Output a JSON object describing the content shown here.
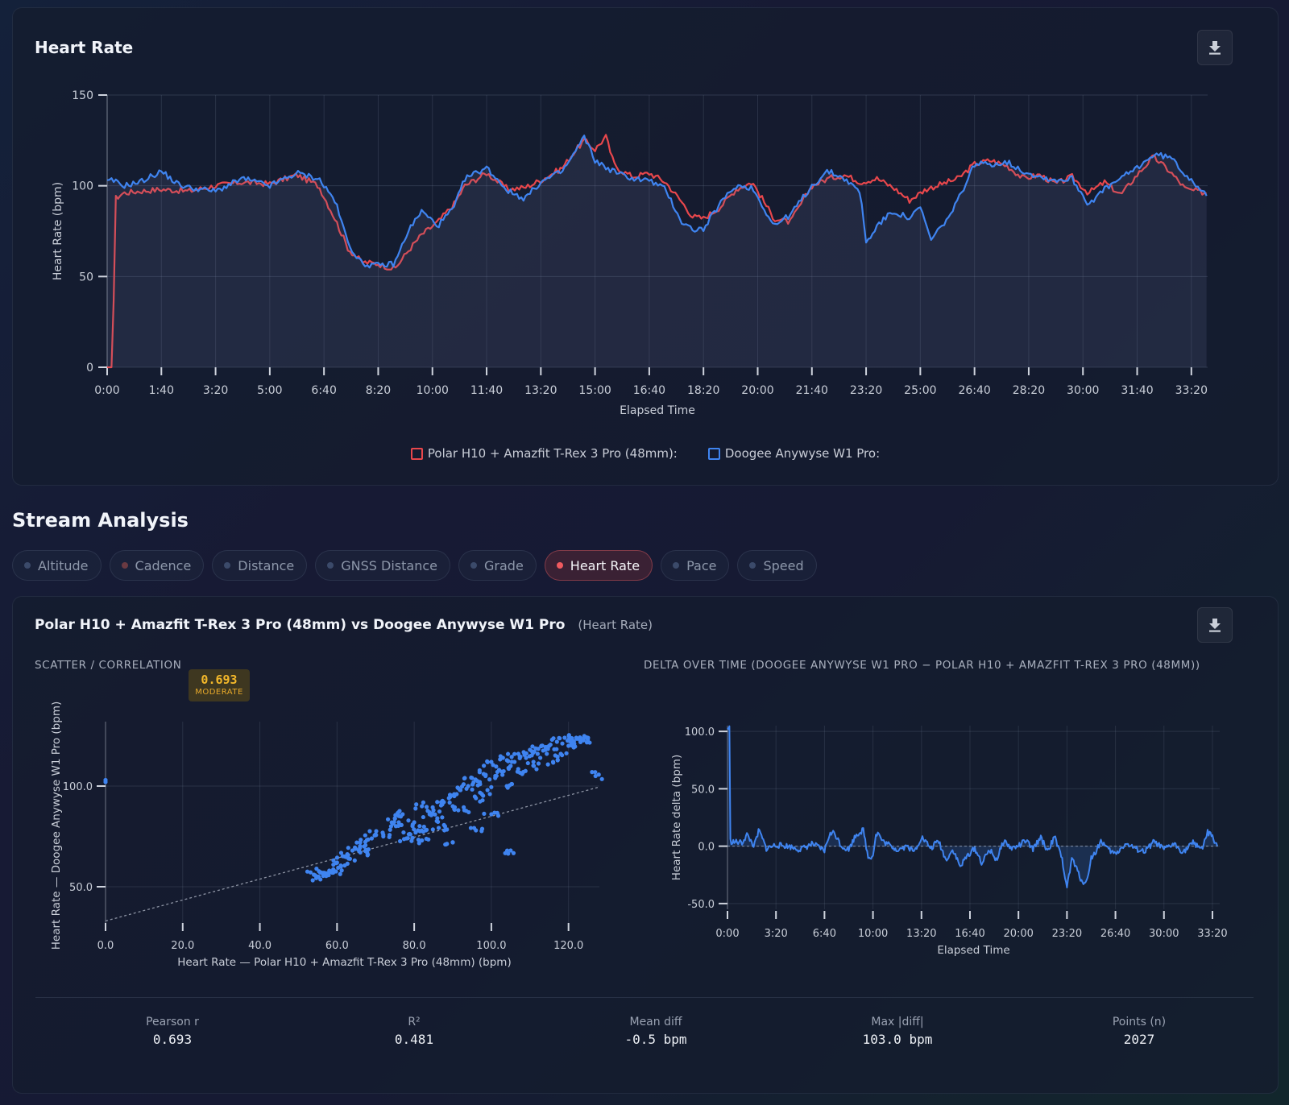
{
  "heart_rate_card": {
    "title": "Heart Rate",
    "download_icon": "download-icon",
    "legend": [
      {
        "label": "Polar H10 + Amazfit T-Rex 3 Pro (48mm):",
        "color": "#e8474c"
      },
      {
        "label": "Doogee Anywyse W1 Pro:",
        "color": "#3f84f0"
      }
    ]
  },
  "section": {
    "title": "Stream Analysis",
    "tabs": [
      {
        "label": "Altitude",
        "active": false
      },
      {
        "label": "Cadence",
        "active": false
      },
      {
        "label": "Distance",
        "active": false
      },
      {
        "label": "GNSS Distance",
        "active": false
      },
      {
        "label": "Grade",
        "active": false
      },
      {
        "label": "Heart Rate",
        "active": true
      },
      {
        "label": "Pace",
        "active": false
      },
      {
        "label": "Speed",
        "active": false
      }
    ]
  },
  "comparison": {
    "title": "Polar H10 + Amazfit T-Rex 3 Pro (48mm) vs Doogee Anywyse W1 Pro",
    "subtitle": "(Heart Rate)",
    "scatter_label": "SCATTER / CORRELATION",
    "badge_value": "0.693",
    "badge_label": "MODERATE",
    "delta_label": "DELTA OVER TIME (DOOGEE ANYWYSE W1 PRO − POLAR H10 + AMAZFIT T-REX 3 PRO (48MM))",
    "stats": [
      {
        "label": "Pearson r",
        "value": "0.693"
      },
      {
        "label": "R²",
        "value": "0.481"
      },
      {
        "label": "Mean diff",
        "value": "-0.5 bpm"
      },
      {
        "label": "Max |diff|",
        "value": "103.0 bpm"
      },
      {
        "label": "Points (n)",
        "value": "2027"
      }
    ]
  },
  "chart_data": [
    {
      "id": "hr-timeseries",
      "type": "line",
      "title": "Heart Rate",
      "xlabel": "Elapsed Time",
      "ylabel": "Heart Rate (bpm)",
      "ylim": [
        0,
        150
      ],
      "xlim": [
        0,
        2030
      ],
      "x_ticks": [
        "0:00",
        "1:40",
        "3:20",
        "5:00",
        "6:40",
        "8:20",
        "10:00",
        "11:40",
        "13:20",
        "15:00",
        "16:40",
        "18:20",
        "20:00",
        "21:40",
        "23:20",
        "25:00",
        "26:40",
        "28:20",
        "30:00",
        "31:40",
        "33:20"
      ],
      "x_tick_values": [
        0,
        100,
        200,
        300,
        400,
        500,
        600,
        700,
        800,
        900,
        1000,
        1100,
        1200,
        1300,
        1400,
        1500,
        1600,
        1700,
        1800,
        1900,
        2000
      ],
      "y_ticks": [
        0,
        50,
        100,
        150
      ],
      "grid": true,
      "legend_position": "bottom",
      "series": [
        {
          "name": "Polar H10 + Amazfit T-Rex 3 Pro (48mm):",
          "color": "#e8474c",
          "x": [
            0,
            10,
            15,
            30,
            60,
            100,
            150,
            200,
            250,
            300,
            350,
            390,
            420,
            445,
            470,
            500,
            530,
            555,
            580,
            610,
            640,
            660,
            700,
            740,
            770,
            800,
            840,
            860,
            880,
            900,
            920,
            935,
            950,
            970,
            1000,
            1030,
            1060,
            1080,
            1100,
            1130,
            1160,
            1190,
            1230,
            1260,
            1300,
            1330,
            1360,
            1390,
            1420,
            1450,
            1480,
            1510,
            1540,
            1570,
            1600,
            1630,
            1660,
            1690,
            1720,
            1750,
            1780,
            1810,
            1840,
            1870,
            1900,
            1930,
            1960,
            1990,
            2030
          ],
          "y": [
            0,
            0,
            93,
            96,
            97,
            98,
            97,
            100,
            102,
            101,
            106,
            100,
            82,
            65,
            58,
            57,
            54,
            64,
            73,
            80,
            90,
            100,
            107,
            98,
            99,
            103,
            110,
            118,
            125,
            120,
            127,
            112,
            108,
            105,
            107,
            102,
            91,
            83,
            82,
            88,
            98,
            102,
            82,
            80,
            100,
            104,
            106,
            102,
            104,
            99,
            92,
            98,
            101,
            104,
            112,
            114,
            111,
            104,
            106,
            101,
            105,
            96,
            102,
            95,
            106,
            116,
            108,
            98,
            96
          ]
        },
        {
          "name": "Doogee Anywyse W1 Pro:",
          "color": "#3f84f0",
          "x": [
            0,
            10,
            30,
            60,
            100,
            130,
            150,
            200,
            250,
            300,
            350,
            390,
            420,
            445,
            470,
            500,
            530,
            555,
            580,
            610,
            640,
            660,
            700,
            740,
            770,
            800,
            840,
            860,
            880,
            900,
            920,
            935,
            950,
            970,
            1000,
            1030,
            1060,
            1080,
            1100,
            1130,
            1160,
            1190,
            1230,
            1260,
            1300,
            1330,
            1360,
            1390,
            1400,
            1420,
            1450,
            1480,
            1500,
            1520,
            1540,
            1560,
            1600,
            1630,
            1660,
            1690,
            1720,
            1750,
            1780,
            1810,
            1840,
            1870,
            1900,
            1930,
            1960,
            1990,
            2030
          ],
          "y": [
            102,
            103,
            100,
            102,
            108,
            101,
            99,
            97,
            104,
            100,
            107,
            104,
            92,
            68,
            57,
            56,
            57,
            75,
            86,
            78,
            88,
            104,
            110,
            97,
            93,
            102,
            108,
            117,
            127,
            114,
            110,
            108,
            106,
            104,
            103,
            98,
            80,
            76,
            76,
            90,
            100,
            99,
            78,
            84,
            100,
            108,
            104,
            96,
            68,
            78,
            86,
            82,
            88,
            70,
            78,
            86,
            112,
            112,
            113,
            108,
            105,
            103,
            104,
            90,
            98,
            104,
            110,
            117,
            116,
            106,
            95
          ]
        }
      ]
    },
    {
      "id": "scatter",
      "type": "scatter",
      "xlabel": "Heart Rate — Polar H10 + Amazfit T-Rex 3 Pro (48mm) (bpm)",
      "ylabel": "Heart Rate — Doogee Anywyse W1 Pro (bpm)",
      "x_ticks": [
        0.0,
        20.0,
        40.0,
        60.0,
        80.0,
        100.0,
        120.0
      ],
      "y_ticks": [
        50.0,
        100.0
      ],
      "xlim": [
        0,
        128
      ],
      "ylim": [
        32,
        132
      ],
      "color": "#3f84f0",
      "trendline": {
        "slope": 0.52,
        "intercept": 33
      },
      "x": [
        0,
        0,
        54,
        55,
        56,
        57,
        58,
        59,
        60,
        61,
        62,
        63,
        64,
        66,
        67,
        68,
        69,
        70,
        72,
        74,
        75,
        76,
        77,
        78,
        79,
        80,
        81,
        82,
        82,
        83,
        84,
        85,
        86,
        87,
        88,
        89,
        90,
        90,
        91,
        92,
        93,
        94,
        95,
        96,
        96,
        97,
        98,
        99,
        100,
        100,
        101,
        102,
        103,
        104,
        105,
        105,
        106,
        107,
        108,
        109,
        110,
        111,
        112,
        113,
        114,
        115,
        116,
        117,
        118,
        119,
        120,
        121,
        122,
        123,
        124,
        125,
        127
      ],
      "y": [
        103,
        102,
        56,
        55,
        57,
        56,
        58,
        57,
        62,
        60,
        65,
        64,
        68,
        72,
        70,
        66,
        74,
        76,
        75,
        80,
        84,
        82,
        86,
        74,
        76,
        82,
        78,
        90,
        73,
        78,
        86,
        88,
        84,
        92,
        80,
        94,
        90,
        72,
        96,
        98,
        88,
        100,
        104,
        94,
        78,
        102,
        106,
        98,
        112,
        86,
        104,
        108,
        114,
        100,
        110,
        68,
        112,
        116,
        106,
        114,
        118,
        110,
        116,
        120,
        118,
        120,
        112,
        122,
        116,
        124,
        120,
        122,
        124,
        123,
        124,
        123,
        105
      ]
    },
    {
      "id": "delta",
      "type": "line",
      "xlabel": "Elapsed Time",
      "ylabel": "Heart Rate delta (bpm)",
      "ylim": [
        -55,
        105
      ],
      "xlim": [
        0,
        2030
      ],
      "x_ticks": [
        "0:00",
        "3:20",
        "6:40",
        "10:00",
        "13:20",
        "16:40",
        "20:00",
        "23:20",
        "26:40",
        "30:00",
        "33:20"
      ],
      "x_tick_values": [
        0,
        200,
        400,
        600,
        800,
        1000,
        1200,
        1400,
        1600,
        1800,
        2000
      ],
      "y_ticks": [
        100.0,
        50.0,
        0.0,
        -50.0
      ],
      "color": "#3f84f0",
      "series": [
        {
          "name": "",
          "x": [
            0,
            8,
            10,
            15,
            60,
            80,
            110,
            130,
            160,
            200,
            250,
            300,
            350,
            400,
            420,
            440,
            470,
            500,
            530,
            560,
            580,
            600,
            610,
            620,
            640,
            660,
            700,
            740,
            770,
            800,
            840,
            870,
            900,
            930,
            960,
            990,
            1020,
            1050,
            1080,
            1110,
            1140,
            1170,
            1200,
            1230,
            1260,
            1290,
            1320,
            1350,
            1380,
            1400,
            1410,
            1420,
            1440,
            1460,
            1480,
            1500,
            1520,
            1540,
            1570,
            1600,
            1640,
            1680,
            1720,
            1760,
            1800,
            1840,
            1880,
            1920,
            1960,
            1980,
            2000,
            2020
          ],
          "y": [
            103,
            103,
            5,
            4,
            3,
            10,
            0,
            14,
            -2,
            1,
            0,
            -3,
            2,
            -4,
            10,
            12,
            0,
            -3,
            10,
            14,
            -10,
            -8,
            8,
            12,
            4,
            2,
            -3,
            0,
            -5,
            8,
            -2,
            5,
            -12,
            -3,
            -18,
            -8,
            -2,
            -15,
            -3,
            -12,
            5,
            -2,
            0,
            5,
            -3,
            8,
            -4,
            8,
            -12,
            -35,
            -25,
            -10,
            -20,
            -30,
            -32,
            -10,
            -5,
            5,
            -3,
            -7,
            2,
            -2,
            -5,
            4,
            -3,
            2,
            -5,
            3,
            -2,
            12,
            8,
            0
          ]
        }
      ]
    }
  ]
}
